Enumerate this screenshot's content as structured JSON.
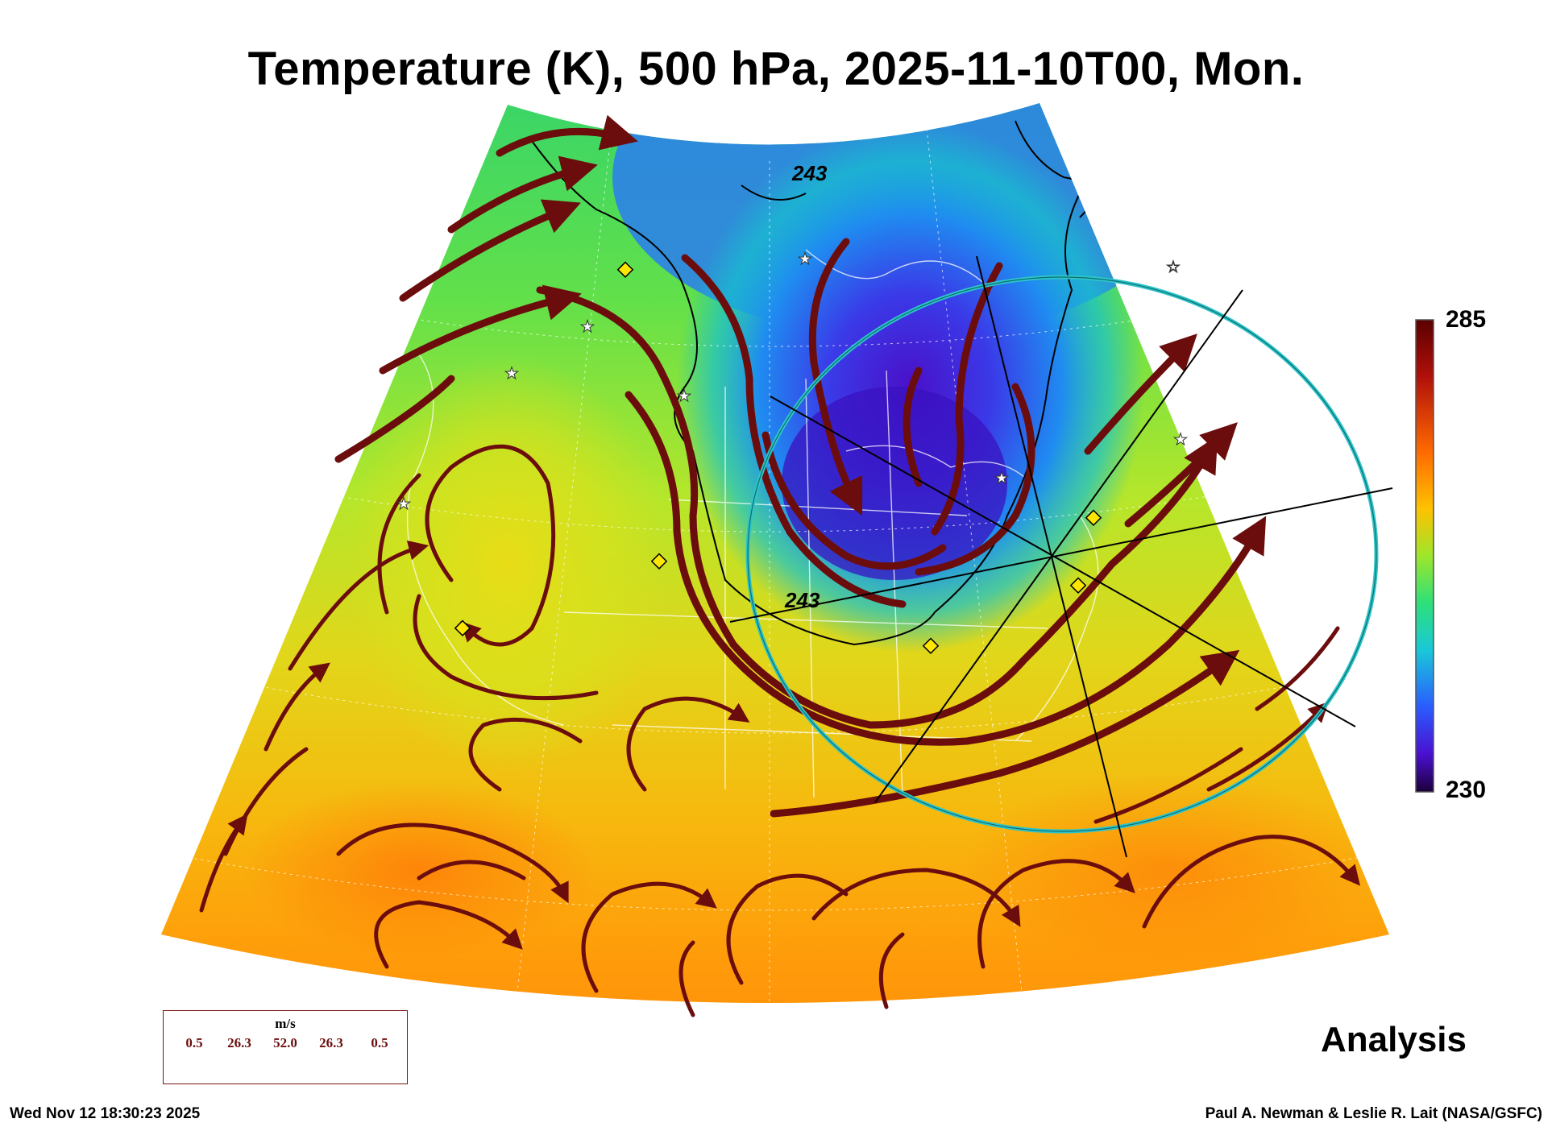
{
  "title": "Temperature (K), 500 hPa, 2025-11-10T00, Mon.",
  "colorbar": {
    "max": "285",
    "min": "230"
  },
  "contour_labels": [
    "243",
    "243"
  ],
  "legend": {
    "unit": "m/s",
    "ticks": [
      "0.5",
      "26.3",
      "52.0",
      "26.3",
      "0.5"
    ]
  },
  "analysis_label": "Analysis",
  "footer": {
    "timestamp": "Wed Nov 12 18:30:23 2025",
    "credit": "Paul A. Newman & Leslie R. Lait (NASA/GSFC)"
  },
  "colors": {
    "streamline": "#6b0d0d",
    "polar_circle": "#2ec4c8",
    "station_diamond": "#ffe600",
    "coastline": "#ffffff"
  }
}
